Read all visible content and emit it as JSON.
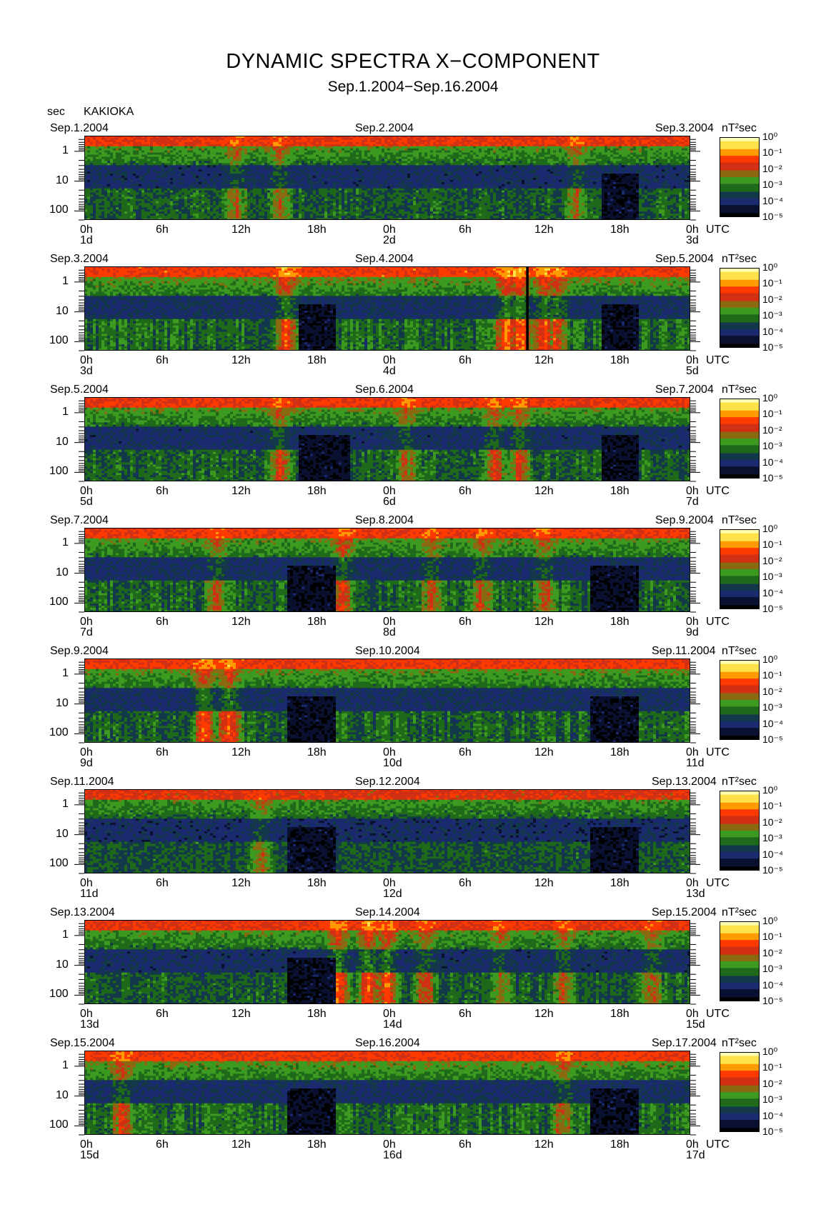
{
  "title": "DYNAMIC SPECTRA X−COMPONENT",
  "subtitle": "Sep.1.2004−Sep.16.2004",
  "period_unit": "sec",
  "station": "KAKIOKA",
  "colorbar_unit": "nT²sec",
  "colorbar_ticks": [
    "10⁰",
    "10⁻¹",
    "10⁻²",
    "10⁻³",
    "10⁻⁴",
    "10⁻⁵"
  ],
  "x_tick_labels": [
    "0h",
    "6h",
    "12h",
    "18h",
    "0h",
    "6h",
    "12h",
    "18h",
    "0h"
  ],
  "x_unit": "UTC",
  "y_tick_labels": [
    "1",
    "10",
    "100"
  ],
  "colormap": [
    "#000000",
    "#0a1030",
    "#1b2a6e",
    "#12384a",
    "#1f6a1a",
    "#3d9a20",
    "#8a6a10",
    "#d23014",
    "#ff3a00",
    "#ff9a00",
    "#ffe14a",
    "#ffffb0"
  ],
  "chart_data": {
    "type": "heatmap",
    "description_axes": {
      "x": "time (UTC)",
      "y": "period (sec), log scale, 1 to 100",
      "z": "power spectral density (nT² sec), log scale 10^-5 to 10^0"
    },
    "ylim": [
      0.3,
      200
    ],
    "zlim": [
      1e-05,
      1
    ],
    "panels": [
      {
        "left_date": "Sep.1.2004",
        "mid_date": "Sep.2.2004",
        "right_date": "Sep.3.2004",
        "day_labels": [
          "1d",
          "2d",
          "3d"
        ],
        "activity": 0.45,
        "events": [
          [
            12,
            0.6
          ],
          [
            15.5,
            0.6
          ],
          [
            39,
            0.6
          ]
        ],
        "quiet": [
          [
            41,
            44
          ]
        ]
      },
      {
        "left_date": "Sep.3.2004",
        "mid_date": "Sep.4.2004",
        "right_date": "Sep.5.2004",
        "day_labels": [
          "3d",
          "4d",
          "5d"
        ],
        "activity": 0.7,
        "events": [
          [
            16,
            0.9
          ],
          [
            33.5,
            1.0
          ],
          [
            34.5,
            1.0
          ],
          [
            36.5,
            0.9
          ],
          [
            37.5,
            0.8
          ]
        ],
        "quiet": [
          [
            17,
            20
          ],
          [
            41,
            44
          ]
        ],
        "gap": [
          35.0,
          35.2
        ]
      },
      {
        "left_date": "Sep.5.2004",
        "mid_date": "Sep.6.2004",
        "right_date": "Sep.7.2004",
        "day_labels": [
          "5d",
          "6d",
          "7d"
        ],
        "activity": 0.5,
        "events": [
          [
            15.5,
            0.7
          ],
          [
            25.5,
            0.6
          ],
          [
            32.5,
            0.7
          ],
          [
            34.5,
            0.7
          ]
        ],
        "quiet": [
          [
            17,
            21
          ],
          [
            41,
            44
          ]
        ]
      },
      {
        "left_date": "Sep.7.2004",
        "mid_date": "Sep.8.2004",
        "right_date": "Sep.9.2004",
        "day_labels": [
          "7d",
          "8d",
          "9d"
        ],
        "activity": 0.55,
        "events": [
          [
            10.5,
            0.6
          ],
          [
            20.5,
            0.8
          ],
          [
            27.5,
            0.6
          ],
          [
            31.5,
            0.6
          ],
          [
            36.5,
            0.6
          ]
        ],
        "quiet": [
          [
            16,
            20
          ],
          [
            40,
            44
          ]
        ]
      },
      {
        "left_date": "Sep.9.2004",
        "mid_date": "Sep.10.2004",
        "right_date": "Sep.11.2004",
        "day_labels": [
          "9d",
          "10d",
          "11d"
        ],
        "activity": 0.6,
        "events": [
          [
            9.5,
            0.9
          ],
          [
            11.5,
            0.9
          ]
        ],
        "quiet": [
          [
            16,
            20
          ],
          [
            40,
            44
          ]
        ]
      },
      {
        "left_date": "Sep.11.2004",
        "mid_date": "Sep.12.2004",
        "right_date": "Sep.13.2004",
        "day_labels": [
          "11d",
          "12d",
          "13d"
        ],
        "activity": 0.3,
        "events": [
          [
            14,
            0.6
          ]
        ],
        "quiet": [
          [
            16,
            20
          ],
          [
            40,
            44
          ]
        ]
      },
      {
        "left_date": "Sep.13.2004",
        "mid_date": "Sep.14.2004",
        "right_date": "Sep.15.2004",
        "day_labels": [
          "13d",
          "14d",
          "15d"
        ],
        "activity": 0.45,
        "events": [
          [
            20.1,
            1.0
          ],
          [
            22.5,
            1.0
          ],
          [
            24,
            0.95
          ],
          [
            27,
            0.7
          ],
          [
            33,
            0.6
          ],
          [
            38,
            0.6
          ],
          [
            45,
            0.6
          ]
        ],
        "quiet": [
          [
            16,
            20
          ]
        ]
      },
      {
        "left_date": "Sep.15.2004",
        "mid_date": "Sep.16.2004",
        "right_date": "Sep.17.2004",
        "day_labels": [
          "15d",
          "16d",
          "17d"
        ],
        "activity": 0.65,
        "events": [
          [
            3,
            0.7
          ],
          [
            38,
            0.6
          ]
        ],
        "quiet": [
          [
            16,
            20
          ],
          [
            40,
            44
          ]
        ]
      }
    ]
  }
}
